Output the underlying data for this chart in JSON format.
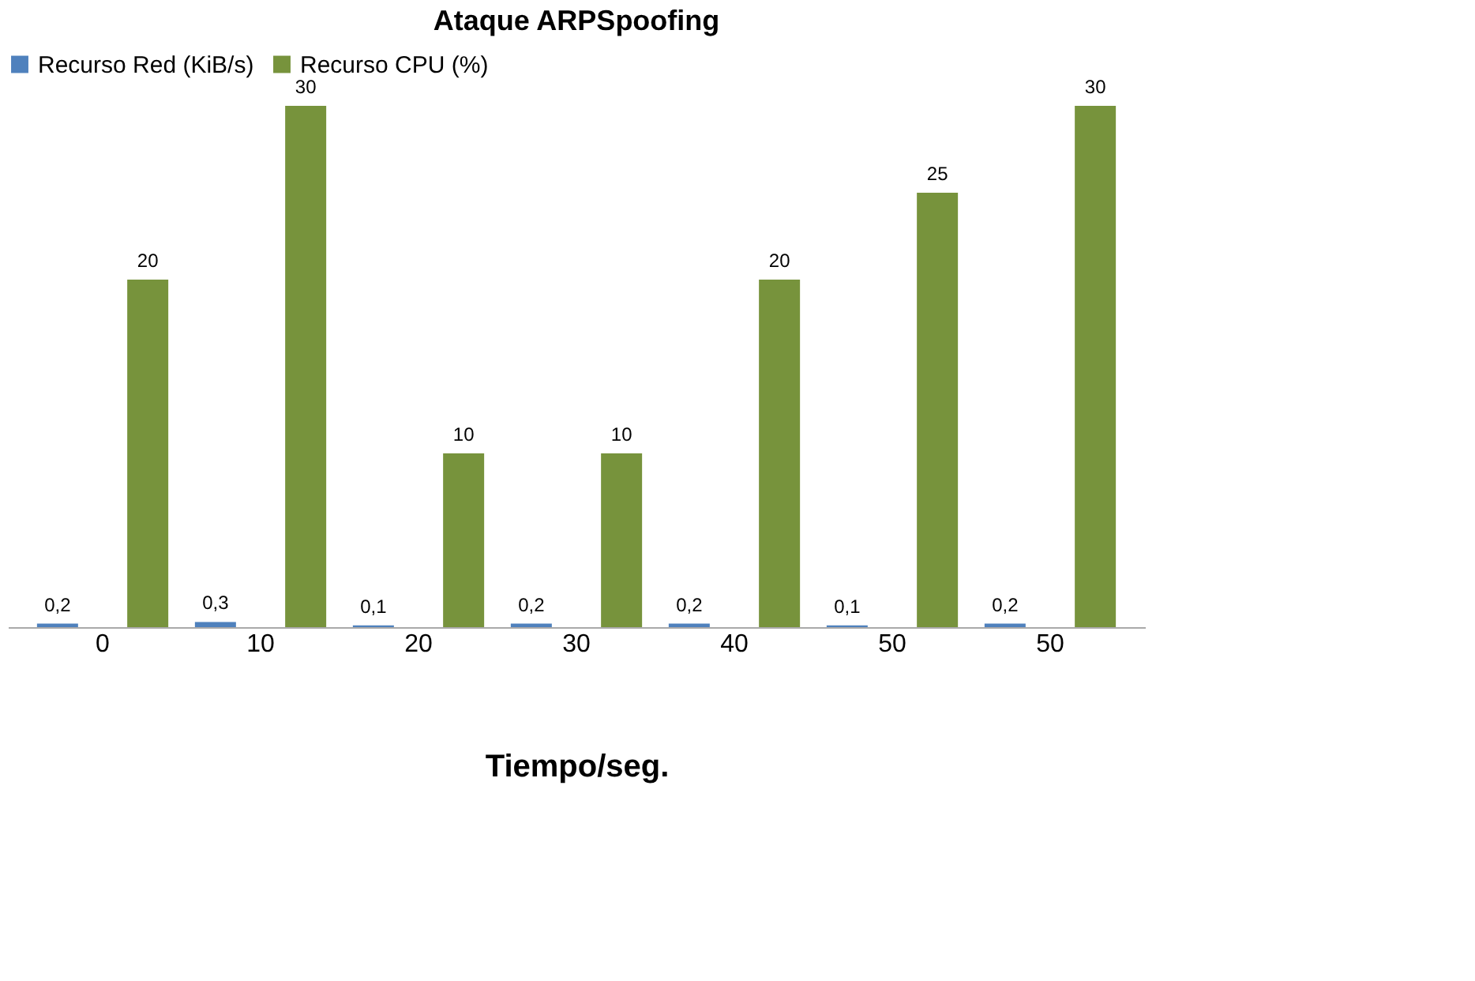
{
  "chart_data": {
    "type": "bar",
    "title": "Ataque ARPSpoofing",
    "xlabel": "Tiempo/seg.",
    "categories": [
      "0",
      "10",
      "20",
      "30",
      "40",
      "50",
      "50"
    ],
    "series": [
      {
        "name": "Recurso Red (KiB/s)",
        "color": "#4f81bd",
        "values": [
          0.2,
          0.3,
          0.1,
          0.2,
          0.2,
          0.1,
          0.2
        ],
        "value_labels": [
          "0,2",
          "0,3",
          "0,1",
          "0,2",
          "0,2",
          "0,1",
          "0,2"
        ]
      },
      {
        "name": "Recurso CPU (%)",
        "color": "#77933c",
        "values": [
          20,
          30,
          10,
          10,
          20,
          25,
          30
        ],
        "value_labels": [
          "20",
          "30",
          "10",
          "10",
          "20",
          "25",
          "30"
        ]
      }
    ],
    "legend": "top",
    "grid": false
  }
}
